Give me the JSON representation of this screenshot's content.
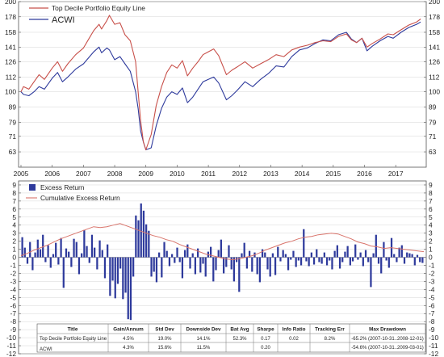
{
  "colors": {
    "portfolio_line": "#c8504a",
    "acwi_line": "#2e3a9c",
    "excess_bar": "#2e3a9c",
    "cumulative_line": "#d9746b"
  },
  "chart_data": [
    {
      "type": "line",
      "panel": "top",
      "title": "",
      "xlabel": "",
      "ylabel": "",
      "y_scale": "log",
      "ylim": [
        56,
        200
      ],
      "xlim": [
        2005.0,
        2017.9
      ],
      "yticks": [
        63,
        71,
        79,
        89,
        100,
        112,
        126,
        141,
        158,
        178,
        200
      ],
      "xtick_labels": [
        "2005",
        "2006",
        "2007",
        "2008",
        "2009",
        "2010",
        "2011",
        "2012",
        "2013",
        "2014",
        "2015",
        "2016",
        "2017"
      ],
      "grid": true,
      "legend": "top-left",
      "series": [
        {
          "name": "Top Decile Portfolio Equity Line",
          "color": "#c8504a",
          "x": [
            2005.0,
            2005.08,
            2005.25,
            2005.42,
            2005.58,
            2005.75,
            2006.0,
            2006.17,
            2006.33,
            2006.5,
            2006.75,
            2007.0,
            2007.17,
            2007.33,
            2007.5,
            2007.58,
            2007.75,
            2007.83,
            2008.0,
            2008.17,
            2008.33,
            2008.5,
            2008.67,
            2008.75,
            2008.83,
            2008.92,
            2009.0,
            2009.17,
            2009.33,
            2009.5,
            2009.67,
            2009.83,
            2010.0,
            2010.17,
            2010.33,
            2010.5,
            2010.67,
            2010.83,
            2011.0,
            2011.17,
            2011.33,
            2011.58,
            2011.75,
            2011.92,
            2012.17,
            2012.42,
            2012.67,
            2012.92,
            2013.17,
            2013.42,
            2013.67,
            2013.92,
            2014.17,
            2014.42,
            2014.67,
            2014.92,
            2015.17,
            2015.42,
            2015.58,
            2015.75,
            2015.92,
            2016.08,
            2016.25,
            2016.5,
            2016.75,
            2016.92,
            2017.17,
            2017.42,
            2017.67,
            2017.8
          ],
          "y": [
            100,
            104,
            102,
            108,
            114,
            110,
            120,
            126,
            117,
            124,
            133,
            140,
            150,
            160,
            168,
            162,
            173,
            180,
            168,
            170,
            155,
            148,
            126,
            100,
            80,
            68,
            64,
            72,
            90,
            104,
            116,
            123,
            120,
            127,
            113,
            120,
            126,
            133,
            136,
            139,
            132,
            114,
            118,
            121,
            126,
            120,
            124,
            128,
            133,
            131,
            138,
            141,
            143,
            146,
            148,
            147,
            153,
            156,
            149,
            146,
            151,
            141,
            145,
            150,
            156,
            155,
            161,
            167,
            171,
            175
          ]
        },
        {
          "name": "ACWI",
          "color": "#2e3a9c",
          "x": [
            2005.0,
            2005.08,
            2005.25,
            2005.42,
            2005.58,
            2005.75,
            2006.0,
            2006.17,
            2006.33,
            2006.5,
            2006.75,
            2007.0,
            2007.17,
            2007.33,
            2007.5,
            2007.58,
            2007.75,
            2007.83,
            2008.0,
            2008.17,
            2008.33,
            2008.5,
            2008.67,
            2008.75,
            2008.83,
            2008.92,
            2009.0,
            2009.17,
            2009.33,
            2009.5,
            2009.67,
            2009.83,
            2010.0,
            2010.17,
            2010.33,
            2010.5,
            2010.67,
            2010.83,
            2011.0,
            2011.17,
            2011.33,
            2011.58,
            2011.75,
            2011.92,
            2012.17,
            2012.42,
            2012.67,
            2012.92,
            2013.17,
            2013.42,
            2013.67,
            2013.92,
            2014.17,
            2014.42,
            2014.67,
            2014.92,
            2015.17,
            2015.42,
            2015.58,
            2015.75,
            2015.92,
            2016.08,
            2016.25,
            2016.5,
            2016.75,
            2016.92,
            2017.17,
            2017.42,
            2017.67,
            2017.8
          ],
          "y": [
            100,
            98,
            97,
            100,
            104,
            102,
            111,
            116,
            108,
            112,
            119,
            124,
            130,
            136,
            141,
            135,
            140,
            138,
            128,
            131,
            124,
            117,
            100,
            88,
            74,
            68,
            64,
            65,
            77,
            88,
            96,
            100,
            98,
            103,
            92,
            96,
            102,
            108,
            110,
            112,
            107,
            94,
            97,
            101,
            108,
            104,
            110,
            115,
            122,
            121,
            131,
            138,
            140,
            145,
            149,
            148,
            155,
            158,
            150,
            146,
            151,
            137,
            142,
            148,
            153,
            151,
            158,
            164,
            168,
            171
          ]
        }
      ]
    },
    {
      "type": "bar",
      "panel": "bottom",
      "title": "",
      "xlabel": "",
      "ylabel": "",
      "ylim": [
        -12,
        9.5
      ],
      "yticks": [
        9,
        8,
        7,
        6,
        5,
        4,
        3,
        2,
        1,
        0,
        -1,
        -2,
        -3,
        -4,
        -5,
        -6,
        -7,
        -8,
        -9,
        -10,
        -11,
        -12
      ],
      "grid": true,
      "legend": "top-left",
      "series": [
        {
          "name": "Excess Return",
          "color": "#2e3a9c",
          "values": [
            2.5,
            1.2,
            -0.8,
            1.9,
            -1.6,
            0.6,
            2.2,
            1.0,
            2.8,
            -0.6,
            1.5,
            -1.3,
            0.4,
            1.8,
            -0.9,
            2.4,
            -3.8,
            1.1,
            0.7,
            -1.2,
            2.3,
            1.9,
            -2.1,
            0.5,
            3.4,
            1.4,
            -0.7,
            2.8,
            1.2,
            -1.5,
            2.1,
            0.9,
            -2.6,
            1.6,
            -4.8,
            -2.9,
            -5.1,
            -3.3,
            -1.4,
            -5.2,
            -4.4,
            -7.7,
            -7.8,
            -2.4,
            5.2,
            4.6,
            6.7,
            5.8,
            4.1,
            3.3,
            -2.4,
            -1.8,
            -3.1,
            0.6,
            -2.5,
            1.9,
            0.8,
            -1.1,
            0.4,
            -0.7,
            1.2,
            -0.6,
            -2.6,
            0.9,
            1.6,
            -1.4,
            0.5,
            -2.1,
            1.1,
            -1.9,
            -0.8,
            -2.4,
            0.7,
            1.3,
            -3.0,
            -1.6,
            0.9,
            2.2,
            -2.0,
            -1.2,
            1.5,
            -1.5,
            -3.0,
            -0.6,
            -4.3,
            0.5,
            1.8,
            -1.4,
            0.8,
            -1.8,
            0.6,
            -2.1,
            -3.1,
            1.0,
            0.6,
            -1.5,
            -2.4,
            0.5,
            -2.2,
            1.3,
            -0.5,
            0.9,
            0.4,
            -1.6,
            -0.3,
            0.8,
            -1.2,
            -0.4,
            -1.0,
            3.5,
            -0.5,
            -1.1,
            0.6,
            -0.9,
            1.0,
            -0.6,
            -0.8,
            0.6,
            -1.0,
            -0.4,
            -1.5,
            0.8,
            1.5,
            -1.4,
            -0.6,
            0.7,
            1.4,
            -1.0,
            -0.5,
            1.6,
            -0.3,
            0.6,
            -1.1,
            0.9,
            -0.6,
            -3.7,
            0.5,
            2.8,
            -0.8,
            -2.0,
            1.9,
            -0.4,
            -1.3,
            2.4,
            0.4,
            -0.6,
            1.2,
            1.5,
            -0.8,
            0.6,
            0.5,
            0.4,
            -1.0,
            0.3,
            -0.6,
            -0.7
          ]
        },
        {
          "name": "Cumulative Excess Return",
          "color": "#d9746b",
          "values": [
            0.2,
            0.5,
            0.9,
            1.2,
            1.5,
            1.9,
            2.3,
            2.6,
            2.9,
            3.2,
            3.5,
            3.8,
            3.7,
            3.8,
            4.0,
            4.2,
            3.9,
            3.6,
            3.3,
            3.0,
            2.7,
            2.5,
            2.2,
            2.0,
            1.6,
            1.3,
            1.0,
            0.7,
            0.4,
            0.2,
            0.0,
            -0.2,
            -0.3,
            -0.2,
            0.0,
            0.2,
            0.5,
            0.9,
            1.2,
            1.5,
            1.8,
            2.0,
            2.3,
            2.5,
            2.6,
            2.8,
            2.9,
            3.0,
            2.9,
            2.6,
            2.3,
            1.9,
            1.7,
            1.4,
            1.3,
            1.1,
            1.2,
            1.1,
            1.0,
            0.9,
            0.8,
            0.7
          ]
        }
      ]
    },
    {
      "type": "table",
      "columns": [
        "Title",
        "Gain/Annum",
        "Std Dev",
        "Downside Dev",
        "Bat Avg",
        "Sharpe",
        "Info Ratio",
        "Tracking Err",
        "Max Drawdown"
      ],
      "rows": [
        [
          "Top Decile Portfolio Equity Line",
          "4.5%",
          "19.0%",
          "14.1%",
          "52.3%",
          "0.17",
          "0.02",
          "8.2%",
          "-65.2% (2007-10-31..2008-12-01)"
        ],
        [
          "ACWI",
          "4.3%",
          "15.6%",
          "11.5%",
          "",
          "0.20",
          "",
          "",
          "-54.6% (2007-10-31..2009-03-01)"
        ]
      ]
    }
  ]
}
